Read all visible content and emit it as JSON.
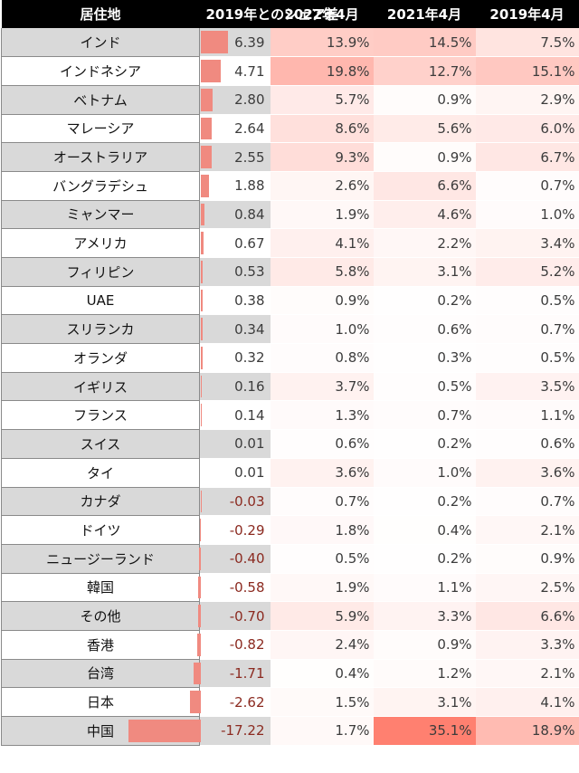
{
  "colors": {
    "header_bg": "#000000",
    "bar": "#f08a80",
    "heat_max": "#f08070",
    "stripe": "#d9d9d9"
  },
  "headers": [
    "居住地",
    "2019年とのシェア差",
    "2022年4月",
    "2021年4月",
    "2019年4月"
  ],
  "chart_data": {
    "type": "table",
    "columns": [
      "居住地",
      "2019年とのシェア差",
      "2022年4月",
      "2021年4月",
      "2019年4月"
    ],
    "rows": [
      {
        "name": "インド",
        "diff": 6.39,
        "diff_label": "6.39",
        "y2022": 13.9,
        "y2022_label": "13.9%",
        "y2021": 14.5,
        "y2021_label": "14.5%",
        "y2019": 7.5,
        "y2019_label": "7.5%"
      },
      {
        "name": "インドネシア",
        "diff": 4.71,
        "diff_label": "4.71",
        "y2022": 19.8,
        "y2022_label": "19.8%",
        "y2021": 12.7,
        "y2021_label": "12.7%",
        "y2019": 15.1,
        "y2019_label": "15.1%"
      },
      {
        "name": "ベトナム",
        "diff": 2.8,
        "diff_label": "2.80",
        "y2022": 5.7,
        "y2022_label": "5.7%",
        "y2021": 0.9,
        "y2021_label": "0.9%",
        "y2019": 2.9,
        "y2019_label": "2.9%"
      },
      {
        "name": "マレーシア",
        "diff": 2.64,
        "diff_label": "2.64",
        "y2022": 8.6,
        "y2022_label": "8.6%",
        "y2021": 5.6,
        "y2021_label": "5.6%",
        "y2019": 6.0,
        "y2019_label": "6.0%"
      },
      {
        "name": "オーストラリア",
        "diff": 2.55,
        "diff_label": "2.55",
        "y2022": 9.3,
        "y2022_label": "9.3%",
        "y2021": 0.9,
        "y2021_label": "0.9%",
        "y2019": 6.7,
        "y2019_label": "6.7%"
      },
      {
        "name": "バングラデシュ",
        "diff": 1.88,
        "diff_label": "1.88",
        "y2022": 2.6,
        "y2022_label": "2.6%",
        "y2021": 6.6,
        "y2021_label": "6.6%",
        "y2019": 0.7,
        "y2019_label": "0.7%"
      },
      {
        "name": "ミャンマー",
        "diff": 0.84,
        "diff_label": "0.84",
        "y2022": 1.9,
        "y2022_label": "1.9%",
        "y2021": 4.6,
        "y2021_label": "4.6%",
        "y2019": 1.0,
        "y2019_label": "1.0%"
      },
      {
        "name": "アメリカ",
        "diff": 0.67,
        "diff_label": "0.67",
        "y2022": 4.1,
        "y2022_label": "4.1%",
        "y2021": 2.2,
        "y2021_label": "2.2%",
        "y2019": 3.4,
        "y2019_label": "3.4%"
      },
      {
        "name": "フィリピン",
        "diff": 0.53,
        "diff_label": "0.53",
        "y2022": 5.8,
        "y2022_label": "5.8%",
        "y2021": 3.1,
        "y2021_label": "3.1%",
        "y2019": 5.2,
        "y2019_label": "5.2%"
      },
      {
        "name": "UAE",
        "diff": 0.38,
        "diff_label": "0.38",
        "y2022": 0.9,
        "y2022_label": "0.9%",
        "y2021": 0.2,
        "y2021_label": "0.2%",
        "y2019": 0.5,
        "y2019_label": "0.5%"
      },
      {
        "name": "スリランカ",
        "diff": 0.34,
        "diff_label": "0.34",
        "y2022": 1.0,
        "y2022_label": "1.0%",
        "y2021": 0.6,
        "y2021_label": "0.6%",
        "y2019": 0.7,
        "y2019_label": "0.7%"
      },
      {
        "name": "オランダ",
        "diff": 0.32,
        "diff_label": "0.32",
        "y2022": 0.8,
        "y2022_label": "0.8%",
        "y2021": 0.3,
        "y2021_label": "0.3%",
        "y2019": 0.5,
        "y2019_label": "0.5%"
      },
      {
        "name": "イギリス",
        "diff": 0.16,
        "diff_label": "0.16",
        "y2022": 3.7,
        "y2022_label": "3.7%",
        "y2021": 0.5,
        "y2021_label": "0.5%",
        "y2019": 3.5,
        "y2019_label": "3.5%"
      },
      {
        "name": "フランス",
        "diff": 0.14,
        "diff_label": "0.14",
        "y2022": 1.3,
        "y2022_label": "1.3%",
        "y2021": 0.7,
        "y2021_label": "0.7%",
        "y2019": 1.1,
        "y2019_label": "1.1%"
      },
      {
        "name": "スイス",
        "diff": 0.01,
        "diff_label": "0.01",
        "y2022": 0.6,
        "y2022_label": "0.6%",
        "y2021": 0.2,
        "y2021_label": "0.2%",
        "y2019": 0.6,
        "y2019_label": "0.6%"
      },
      {
        "name": "タイ",
        "diff": 0.01,
        "diff_label": "0.01",
        "y2022": 3.6,
        "y2022_label": "3.6%",
        "y2021": 1.0,
        "y2021_label": "1.0%",
        "y2019": 3.6,
        "y2019_label": "3.6%"
      },
      {
        "name": "カナダ",
        "diff": -0.03,
        "diff_label": "-0.03",
        "y2022": 0.7,
        "y2022_label": "0.7%",
        "y2021": 0.2,
        "y2021_label": "0.2%",
        "y2019": 0.7,
        "y2019_label": "0.7%"
      },
      {
        "name": "ドイツ",
        "diff": -0.29,
        "diff_label": "-0.29",
        "y2022": 1.8,
        "y2022_label": "1.8%",
        "y2021": 0.4,
        "y2021_label": "0.4%",
        "y2019": 2.1,
        "y2019_label": "2.1%"
      },
      {
        "name": "ニュージーランド",
        "diff": -0.4,
        "diff_label": "-0.40",
        "y2022": 0.5,
        "y2022_label": "0.5%",
        "y2021": 0.2,
        "y2021_label": "0.2%",
        "y2019": 0.9,
        "y2019_label": "0.9%"
      },
      {
        "name": "韓国",
        "diff": -0.58,
        "diff_label": "-0.58",
        "y2022": 1.9,
        "y2022_label": "1.9%",
        "y2021": 1.1,
        "y2021_label": "1.1%",
        "y2019": 2.5,
        "y2019_label": "2.5%"
      },
      {
        "name": "その他",
        "diff": -0.7,
        "diff_label": "-0.70",
        "y2022": 5.9,
        "y2022_label": "5.9%",
        "y2021": 3.3,
        "y2021_label": "3.3%",
        "y2019": 6.6,
        "y2019_label": "6.6%"
      },
      {
        "name": "香港",
        "diff": -0.82,
        "diff_label": "-0.82",
        "y2022": 2.4,
        "y2022_label": "2.4%",
        "y2021": 0.9,
        "y2021_label": "0.9%",
        "y2019": 3.3,
        "y2019_label": "3.3%"
      },
      {
        "name": "台湾",
        "diff": -1.71,
        "diff_label": "-1.71",
        "y2022": 0.4,
        "y2022_label": "0.4%",
        "y2021": 1.2,
        "y2021_label": "1.2%",
        "y2019": 2.1,
        "y2019_label": "2.1%"
      },
      {
        "name": "日本",
        "diff": -2.62,
        "diff_label": "-2.62",
        "y2022": 1.5,
        "y2022_label": "1.5%",
        "y2021": 3.1,
        "y2021_label": "3.1%",
        "y2019": 4.1,
        "y2019_label": "4.1%"
      },
      {
        "name": "中国",
        "diff": -17.22,
        "diff_label": "-17.22",
        "y2022": 1.7,
        "y2022_label": "1.7%",
        "y2021": 35.1,
        "y2021_label": "35.1%",
        "y2019": 18.9,
        "y2019_label": "18.9%"
      }
    ]
  }
}
